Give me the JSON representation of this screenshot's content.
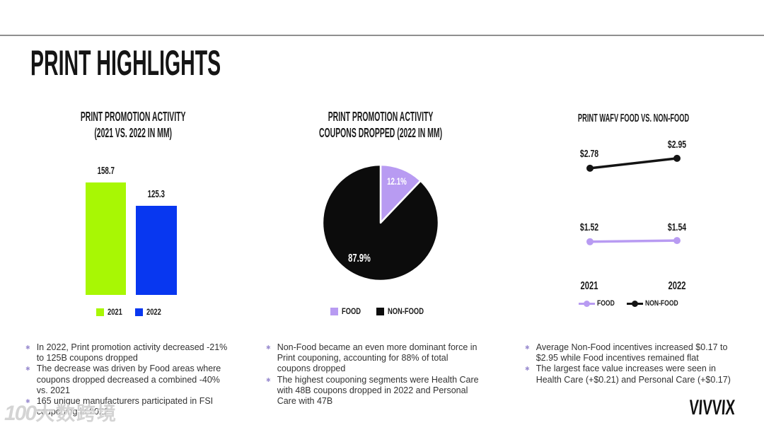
{
  "page": {
    "title": "PRINT HIGHLIGHTS"
  },
  "colors": {
    "green": "#a8f704",
    "blue": "#0837f0",
    "purple": "#b89bf2",
    "black": "#0c0c0c"
  },
  "chart_data": [
    {
      "type": "bar",
      "title": "PRINT PROMOTION ACTIVITY",
      "subtitle": "(2021 VS. 2022 IN MM)",
      "categories": [
        "2021",
        "2022"
      ],
      "values": [
        158.7,
        125.3
      ],
      "colors": [
        "#a8f704",
        "#0837f0"
      ],
      "legend": [
        "2021",
        "2022"
      ],
      "legend_position": "bottom",
      "ylim": [
        0,
        170
      ],
      "grid": false
    },
    {
      "type": "pie",
      "title": "PRINT PROMOTION ACTIVITY",
      "subtitle": "COUPONS DROPPED (2022 IN MM)",
      "slices": [
        {
          "label": "FOOD",
          "value": 12.1,
          "display": "12.1%",
          "color": "#b89bf2"
        },
        {
          "label": "NON-FOOD",
          "value": 87.9,
          "display": "87.9%",
          "color": "#0c0c0c"
        }
      ],
      "legend": [
        "FOOD",
        "NON-FOOD"
      ],
      "legend_position": "bottom",
      "start_angle_deg": -90,
      "direction": "clockwise"
    },
    {
      "type": "line",
      "title": "PRINT WAFV FOOD VS. NON-FOOD",
      "x": [
        "2021",
        "2022"
      ],
      "series": [
        {
          "name": "FOOD",
          "color": "#b89bf2",
          "values": [
            1.52,
            1.54
          ],
          "labels": [
            "$1.52",
            "$1.54"
          ]
        },
        {
          "name": "NON-FOOD",
          "color": "#141414",
          "values": [
            2.78,
            2.95
          ],
          "labels": [
            "$2.78",
            "$2.95"
          ]
        }
      ],
      "legend": [
        "FOOD",
        "NON-FOOD"
      ],
      "legend_position": "bottom",
      "grid": false
    }
  ],
  "notes": {
    "col1": [
      "In 2022, Print promotion activity decreased -21% to 125B coupons dropped",
      "The decrease was driven by Food areas where coupons dropped decreased a combined -40% vs. 2021",
      "165 unique manufacturers participated in FSI couponing in 2022"
    ],
    "col2": [
      "Non-Food became an even more dominant force in Print couponing, accounting for 88% of total coupons dropped",
      "The highest couponing segments were Health Care with 48B coupons dropped in 2022 and Personal Care with 47B"
    ],
    "col3": [
      "Average Non-Food incentives increased $0.17 to $2.95 while Food incentives remained flat",
      "The largest face value increases were seen in Health Care (+$0.21) and Personal Care (+$0.17)"
    ]
  },
  "watermark": {
    "logo": "100",
    "text": "大数跨境"
  },
  "brand": {
    "logo": "VIVVIX"
  }
}
